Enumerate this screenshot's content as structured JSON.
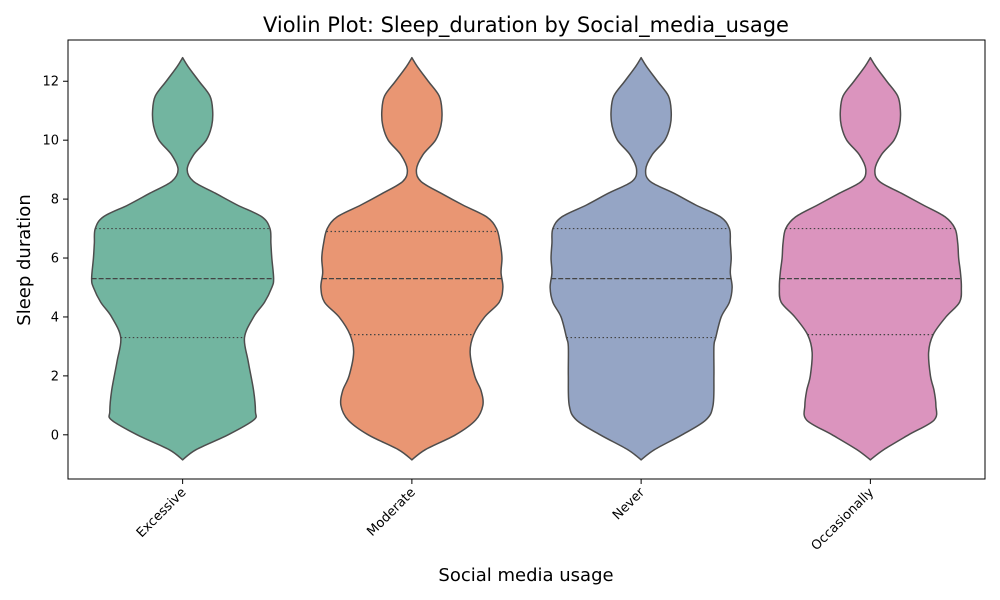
{
  "chart_data": {
    "type": "violin",
    "title": "Violin Plot: Sleep_duration by Social_media_usage",
    "xlabel": "Social media usage",
    "ylabel": "Sleep duration",
    "ylim": [
      -1.5,
      13.4
    ],
    "yticks": [
      0,
      2,
      4,
      6,
      8,
      10,
      12
    ],
    "grid": false,
    "categories": [
      "Excessive",
      "Moderate",
      "Never",
      "Occasionally"
    ],
    "colors": [
      "#72b5a0",
      "#e99673",
      "#95a5c5",
      "#db94be"
    ],
    "violins": [
      {
        "category": "Excessive",
        "q1": 3.3,
        "median": 5.3,
        "q3": 7.0,
        "profile": [
          [
            -0.85,
            0.0
          ],
          [
            -0.5,
            0.15
          ],
          [
            0.0,
            0.5
          ],
          [
            0.5,
            0.78
          ],
          [
            0.8,
            0.8
          ],
          [
            1.5,
            0.78
          ],
          [
            2.5,
            0.72
          ],
          [
            3.3,
            0.68
          ],
          [
            4.0,
            0.78
          ],
          [
            4.5,
            0.9
          ],
          [
            5.0,
            0.98
          ],
          [
            5.3,
            1.0
          ],
          [
            6.0,
            0.98
          ],
          [
            6.5,
            0.97
          ],
          [
            7.0,
            0.96
          ],
          [
            7.4,
            0.87
          ],
          [
            7.8,
            0.6
          ],
          [
            8.2,
            0.36
          ],
          [
            8.6,
            0.12
          ],
          [
            9.0,
            0.05
          ],
          [
            9.5,
            0.12
          ],
          [
            10.0,
            0.26
          ],
          [
            10.5,
            0.32
          ],
          [
            11.0,
            0.33
          ],
          [
            11.5,
            0.3
          ],
          [
            12.0,
            0.18
          ],
          [
            12.5,
            0.06
          ],
          [
            12.8,
            0.0
          ]
        ]
      },
      {
        "category": "Moderate",
        "q1": 3.4,
        "median": 5.3,
        "q3": 6.9,
        "profile": [
          [
            -0.85,
            0.0
          ],
          [
            -0.5,
            0.15
          ],
          [
            0.0,
            0.48
          ],
          [
            0.5,
            0.7
          ],
          [
            1.0,
            0.78
          ],
          [
            1.5,
            0.76
          ],
          [
            2.0,
            0.69
          ],
          [
            2.8,
            0.64
          ],
          [
            3.4,
            0.68
          ],
          [
            4.0,
            0.8
          ],
          [
            4.5,
            0.96
          ],
          [
            5.0,
            1.0
          ],
          [
            5.5,
            0.98
          ],
          [
            6.0,
            0.99
          ],
          [
            6.5,
            0.97
          ],
          [
            7.0,
            0.93
          ],
          [
            7.4,
            0.82
          ],
          [
            7.8,
            0.56
          ],
          [
            8.2,
            0.32
          ],
          [
            8.6,
            0.1
          ],
          [
            9.0,
            0.05
          ],
          [
            9.5,
            0.12
          ],
          [
            10.0,
            0.26
          ],
          [
            10.5,
            0.32
          ],
          [
            11.0,
            0.33
          ],
          [
            11.5,
            0.3
          ],
          [
            12.0,
            0.18
          ],
          [
            12.5,
            0.06
          ],
          [
            12.8,
            0.0
          ]
        ]
      },
      {
        "category": "Never",
        "q1": 3.3,
        "median": 5.3,
        "q3": 7.0,
        "profile": [
          [
            -0.85,
            0.0
          ],
          [
            -0.5,
            0.15
          ],
          [
            0.0,
            0.45
          ],
          [
            0.5,
            0.71
          ],
          [
            1.0,
            0.79
          ],
          [
            2.0,
            0.8
          ],
          [
            3.0,
            0.8
          ],
          [
            3.3,
            0.82
          ],
          [
            4.0,
            0.88
          ],
          [
            4.5,
            0.97
          ],
          [
            5.0,
            1.0
          ],
          [
            5.5,
            0.98
          ],
          [
            6.0,
            0.99
          ],
          [
            6.5,
            0.98
          ],
          [
            7.0,
            0.97
          ],
          [
            7.4,
            0.87
          ],
          [
            7.8,
            0.6
          ],
          [
            8.2,
            0.36
          ],
          [
            8.6,
            0.1
          ],
          [
            9.0,
            0.05
          ],
          [
            9.5,
            0.12
          ],
          [
            10.0,
            0.26
          ],
          [
            10.5,
            0.32
          ],
          [
            11.0,
            0.33
          ],
          [
            11.5,
            0.3
          ],
          [
            12.0,
            0.18
          ],
          [
            12.5,
            0.06
          ],
          [
            12.8,
            0.0
          ]
        ]
      },
      {
        "category": "Occasionally",
        "q1": 3.4,
        "median": 5.3,
        "q3": 7.0,
        "profile": [
          [
            -0.85,
            0.0
          ],
          [
            -0.5,
            0.15
          ],
          [
            0.0,
            0.42
          ],
          [
            0.5,
            0.7
          ],
          [
            1.0,
            0.72
          ],
          [
            1.5,
            0.7
          ],
          [
            2.0,
            0.66
          ],
          [
            2.8,
            0.64
          ],
          [
            3.4,
            0.69
          ],
          [
            4.0,
            0.83
          ],
          [
            4.5,
            0.98
          ],
          [
            5.0,
            1.0
          ],
          [
            5.5,
            0.99
          ],
          [
            6.0,
            0.97
          ],
          [
            6.5,
            0.96
          ],
          [
            7.0,
            0.93
          ],
          [
            7.4,
            0.82
          ],
          [
            7.8,
            0.58
          ],
          [
            8.2,
            0.34
          ],
          [
            8.6,
            0.1
          ],
          [
            9.0,
            0.05
          ],
          [
            9.5,
            0.12
          ],
          [
            10.0,
            0.26
          ],
          [
            10.5,
            0.32
          ],
          [
            11.0,
            0.33
          ],
          [
            11.5,
            0.3
          ],
          [
            12.0,
            0.18
          ],
          [
            12.5,
            0.06
          ],
          [
            12.8,
            0.0
          ]
        ]
      }
    ]
  }
}
